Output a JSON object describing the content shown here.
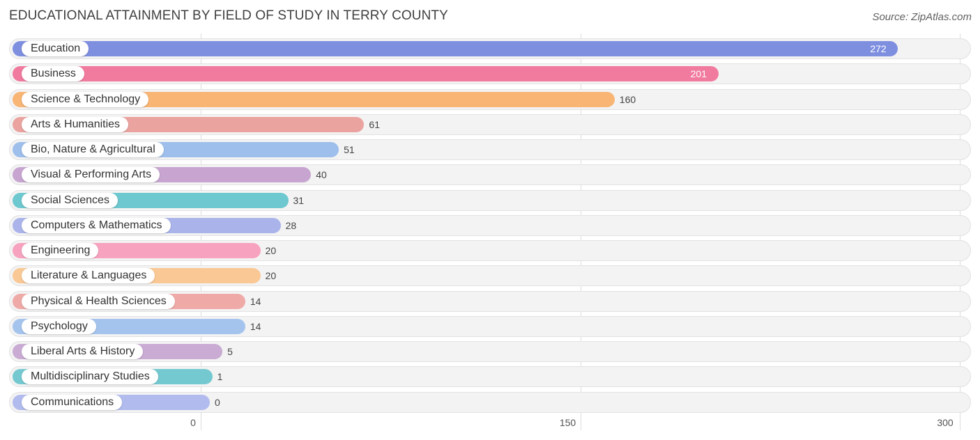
{
  "header": {
    "title": "EDUCATIONAL ATTAINMENT BY FIELD OF STUDY IN TERRY COUNTY",
    "source": "Source: ZipAtlas.com"
  },
  "chart_data": {
    "type": "bar",
    "orientation": "horizontal",
    "title": "EDUCATIONAL ATTAINMENT BY FIELD OF STUDY IN TERRY COUNTY",
    "xlabel": "",
    "ylabel": "",
    "xlim": [
      0,
      300
    ],
    "ticks": [
      "0",
      "150",
      "300"
    ],
    "grid": true,
    "categories": [
      "Education",
      "Business",
      "Science & Technology",
      "Arts & Humanities",
      "Bio, Nature & Agricultural",
      "Visual & Performing Arts",
      "Social Sciences",
      "Computers & Mathematics",
      "Engineering",
      "Literature & Languages",
      "Physical & Health Sciences",
      "Psychology",
      "Liberal Arts & History",
      "Multidisciplinary Studies",
      "Communications"
    ],
    "values": [
      272,
      201,
      160,
      61,
      51,
      40,
      31,
      28,
      20,
      20,
      14,
      14,
      5,
      1,
      0
    ],
    "value_labels": [
      "272",
      "201",
      "160",
      "61",
      "51",
      "40",
      "31",
      "28",
      "20",
      "20",
      "14",
      "14",
      "5",
      "1",
      "0"
    ],
    "colors": [
      "#7f8fe0",
      "#f17a9f",
      "#f8b574",
      "#eaa39f",
      "#9ebfeb",
      "#c7a5d0",
      "#6ec8cf",
      "#aab4ea",
      "#f7a2bf",
      "#f9c895",
      "#efaaa8",
      "#a5c4ed",
      "#c9abd3",
      "#74c9d0",
      "#b1bbed"
    ]
  }
}
